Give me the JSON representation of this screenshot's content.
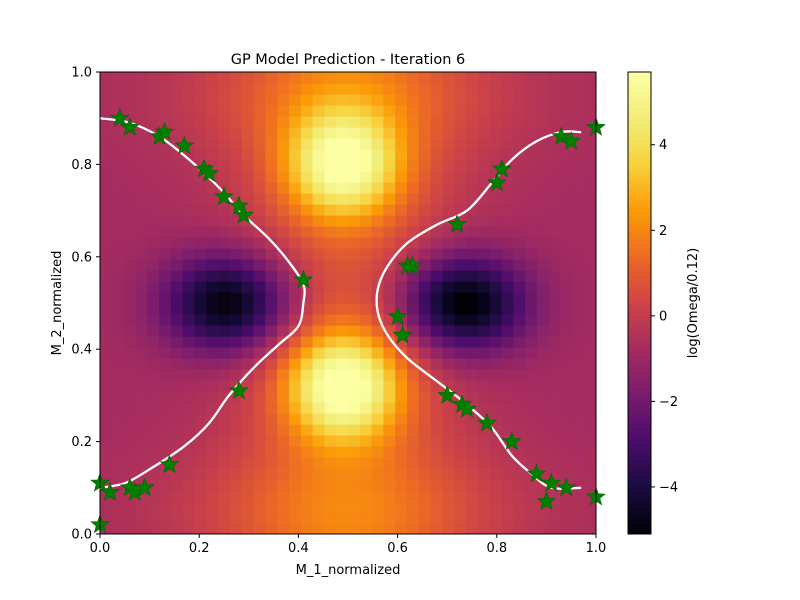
{
  "chart_data": {
    "type": "heatmap",
    "title": "GP Model Prediction - Iteration 6",
    "xlabel": "M_1_normalized",
    "ylabel": "M_2_normalized",
    "xlim": [
      0,
      1
    ],
    "ylim": [
      0,
      1
    ],
    "x_ticks": [
      0.0,
      0.2,
      0.4,
      0.6,
      0.8,
      1.0
    ],
    "y_ticks": [
      0.0,
      0.2,
      0.4,
      0.6,
      0.8,
      1.0
    ],
    "x_tick_labels": [
      "0.0",
      "0.2",
      "0.4",
      "0.6",
      "0.8",
      "1.0"
    ],
    "y_tick_labels": [
      "0.0",
      "0.2",
      "0.4",
      "0.6",
      "0.8",
      "1.0"
    ],
    "grid": false,
    "colormap": "inferno",
    "colorbar": {
      "label": "log(Omega/0.12)",
      "range": [
        -5.1,
        5.7
      ],
      "ticks": [
        -4,
        -2,
        0,
        2,
        4
      ],
      "tick_labels": [
        "−4",
        "−2",
        "0",
        "2",
        "4"
      ]
    },
    "heatmap_grid": {
      "nx": 42,
      "ny": 42
    },
    "heatmap_features": [
      {
        "kind": "peak",
        "center": [
          0.49,
          0.32
        ],
        "value": 5.5
      },
      {
        "kind": "peak",
        "center": [
          0.49,
          0.8
        ],
        "value": 5.0
      },
      {
        "kind": "trough",
        "center": [
          0.26,
          0.5
        ],
        "value": -4.8
      },
      {
        "kind": "trough",
        "center": [
          0.73,
          0.5
        ],
        "value": -5.1
      }
    ],
    "contour": {
      "color": "#ffffff",
      "left_branch": [
        [
          0.0,
          0.9
        ],
        [
          0.06,
          0.89
        ],
        [
          0.12,
          0.86
        ],
        [
          0.18,
          0.81
        ],
        [
          0.24,
          0.75
        ],
        [
          0.29,
          0.69
        ],
        [
          0.34,
          0.64
        ],
        [
          0.38,
          0.59
        ],
        [
          0.41,
          0.54
        ],
        [
          0.41,
          0.5
        ],
        [
          0.4,
          0.45
        ],
        [
          0.36,
          0.41
        ],
        [
          0.31,
          0.36
        ],
        [
          0.26,
          0.3
        ],
        [
          0.22,
          0.24
        ],
        [
          0.17,
          0.19
        ],
        [
          0.1,
          0.14
        ],
        [
          0.05,
          0.11
        ],
        [
          0.0,
          0.1
        ]
      ],
      "right_branch": [
        [
          0.97,
          0.87
        ],
        [
          0.93,
          0.87
        ],
        [
          0.88,
          0.85
        ],
        [
          0.83,
          0.81
        ],
        [
          0.79,
          0.76
        ],
        [
          0.74,
          0.7
        ],
        [
          0.68,
          0.67
        ],
        [
          0.62,
          0.63
        ],
        [
          0.58,
          0.58
        ],
        [
          0.56,
          0.53
        ],
        [
          0.56,
          0.48
        ],
        [
          0.58,
          0.43
        ],
        [
          0.62,
          0.38
        ],
        [
          0.68,
          0.33
        ],
        [
          0.74,
          0.28
        ],
        [
          0.79,
          0.23
        ],
        [
          0.83,
          0.17
        ],
        [
          0.87,
          0.13
        ],
        [
          0.91,
          0.1
        ],
        [
          0.97,
          0.1
        ]
      ]
    },
    "sample_points": {
      "marker": "star",
      "color": "#008000",
      "points": [
        [
          0.04,
          0.9
        ],
        [
          0.06,
          0.88
        ],
        [
          0.12,
          0.86
        ],
        [
          0.13,
          0.87
        ],
        [
          0.17,
          0.84
        ],
        [
          0.21,
          0.79
        ],
        [
          0.22,
          0.78
        ],
        [
          0.25,
          0.73
        ],
        [
          0.28,
          0.71
        ],
        [
          0.29,
          0.69
        ],
        [
          0.41,
          0.55
        ],
        [
          0.28,
          0.31
        ],
        [
          0.14,
          0.15
        ],
        [
          0.0,
          0.11
        ],
        [
          0.02,
          0.09
        ],
        [
          0.06,
          0.1
        ],
        [
          0.07,
          0.09
        ],
        [
          0.09,
          0.1
        ],
        [
          0.0,
          0.02
        ],
        [
          0.72,
          0.67
        ],
        [
          0.8,
          0.76
        ],
        [
          0.81,
          0.79
        ],
        [
          0.62,
          0.58
        ],
        [
          0.63,
          0.58
        ],
        [
          0.6,
          0.47
        ],
        [
          0.61,
          0.43
        ],
        [
          0.7,
          0.3
        ],
        [
          0.73,
          0.28
        ],
        [
          0.74,
          0.27
        ],
        [
          0.78,
          0.24
        ],
        [
          0.83,
          0.2
        ],
        [
          0.88,
          0.13
        ],
        [
          0.9,
          0.07
        ],
        [
          0.91,
          0.11
        ],
        [
          0.94,
          0.1
        ],
        [
          0.93,
          0.86
        ],
        [
          0.95,
          0.85
        ],
        [
          1.0,
          0.88
        ],
        [
          1.0,
          0.08
        ]
      ]
    }
  }
}
